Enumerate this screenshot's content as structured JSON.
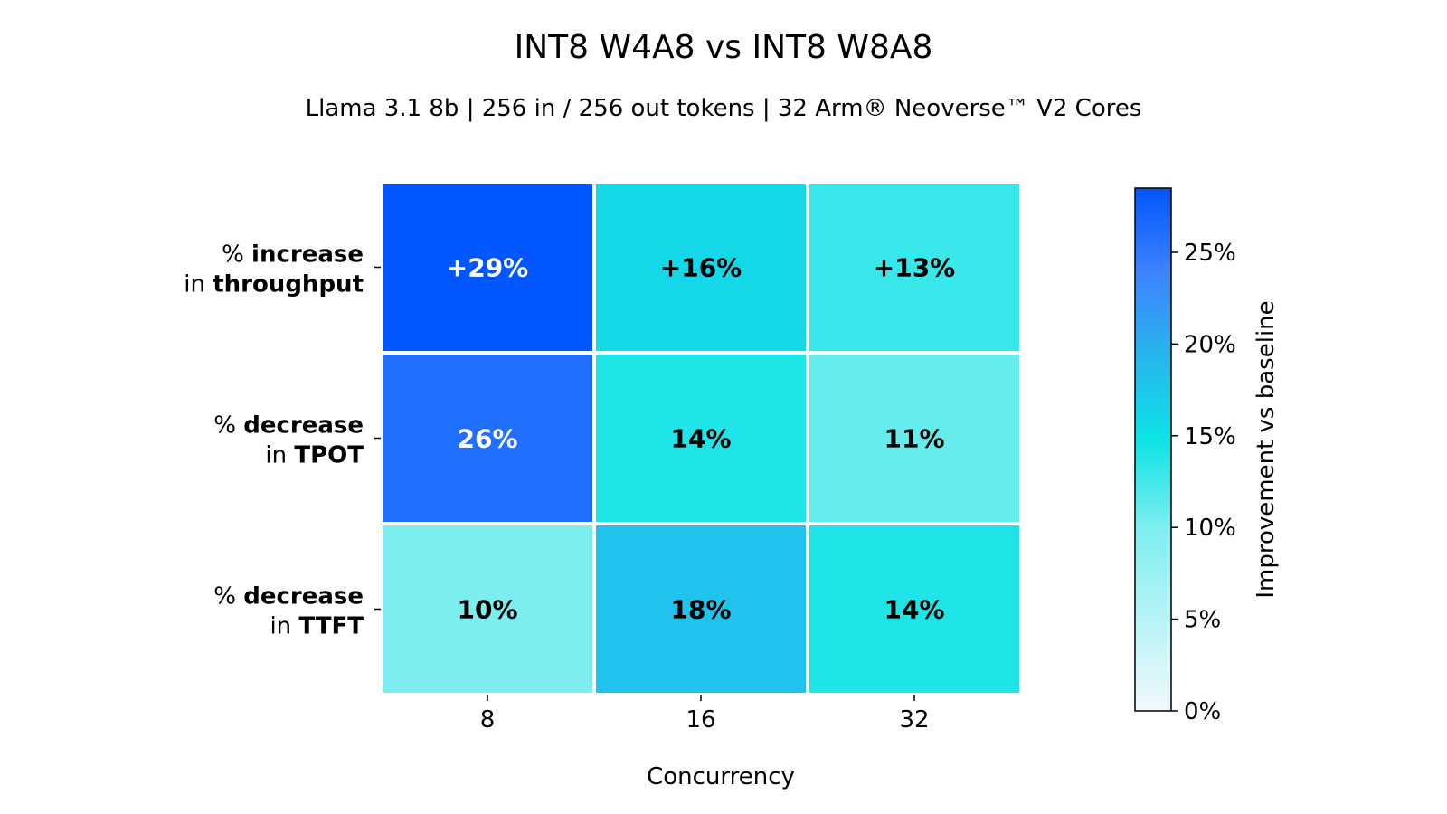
{
  "chart_data": {
    "type": "heatmap",
    "title": "INT8 W4A8 vs INT8 W8A8",
    "subtitle": "Llama 3.1 8b | 256 in / 256 out tokens | 32 Arm® Neoverse™ V2 Cores",
    "xlabel": "Concurrency",
    "x": [
      "8",
      "16",
      "32"
    ],
    "rows": [
      {
        "label_parts": [
          [
            "% ",
            false
          ],
          [
            "increase",
            true
          ]
        ],
        "label_parts2": [
          [
            "in ",
            false
          ],
          [
            "throughput",
            true
          ]
        ]
      },
      {
        "label_parts": [
          [
            "% ",
            false
          ],
          [
            "decrease",
            true
          ]
        ],
        "label_parts2": [
          [
            "in ",
            false
          ],
          [
            "TPOT",
            true
          ]
        ]
      },
      {
        "label_parts": [
          [
            "% ",
            false
          ],
          [
            "decrease",
            true
          ]
        ],
        "label_parts2": [
          [
            "in ",
            false
          ],
          [
            "TTFT",
            true
          ]
        ]
      }
    ],
    "values": [
      [
        29,
        16,
        13
      ],
      [
        26,
        14,
        11
      ],
      [
        10,
        18,
        14
      ]
    ],
    "cell_labels": [
      [
        "+29%",
        "+16%",
        "+13%"
      ],
      [
        "26%",
        "14%",
        "11%"
      ],
      [
        "10%",
        "18%",
        "14%"
      ]
    ],
    "colorbar": {
      "label": "Improvement vs baseline",
      "range": [
        0,
        28.5
      ],
      "ticks": [
        0,
        5,
        10,
        15,
        20,
        25
      ],
      "tick_labels": [
        "0%",
        "5%",
        "10%",
        "15%",
        "20%",
        "25%"
      ],
      "stops": [
        [
          0,
          "#f0f9fd"
        ],
        [
          0.35,
          "#7eeeef"
        ],
        [
          0.52,
          "#0de3e6"
        ],
        [
          0.7,
          "#2aafef"
        ],
        [
          0.84,
          "#3d82ff"
        ],
        [
          1,
          "#0057ff"
        ]
      ]
    }
  }
}
